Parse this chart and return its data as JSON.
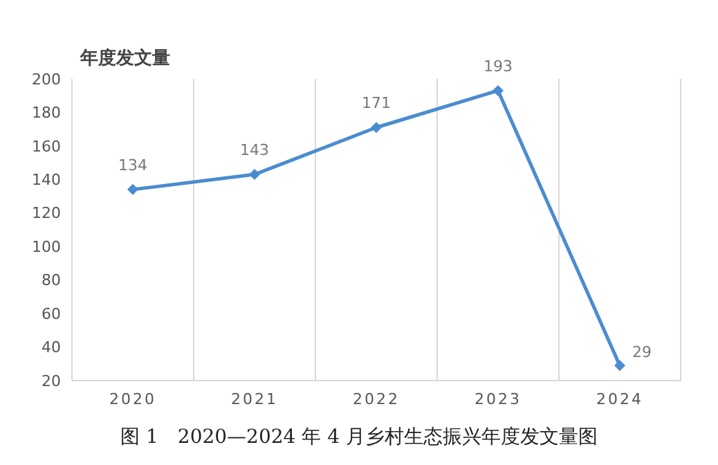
{
  "chart_data": {
    "type": "line",
    "title": "图 1　2020—2024 年 4 月乡村生态振兴年度发文量图",
    "ylabel": "年度发文量",
    "categories": [
      "2020",
      "2021",
      "2022",
      "2023",
      "2024"
    ],
    "series": [
      {
        "color": "#4a8cd0",
        "values": [
          134,
          143,
          171,
          193,
          29
        ]
      }
    ],
    "ylim": [
      20,
      200
    ],
    "yticks": [
      20,
      40,
      60,
      80,
      100,
      120,
      140,
      160,
      180,
      200
    ],
    "grid": "x",
    "data_labels": true,
    "marker": "diamond",
    "line_style": "solid"
  }
}
